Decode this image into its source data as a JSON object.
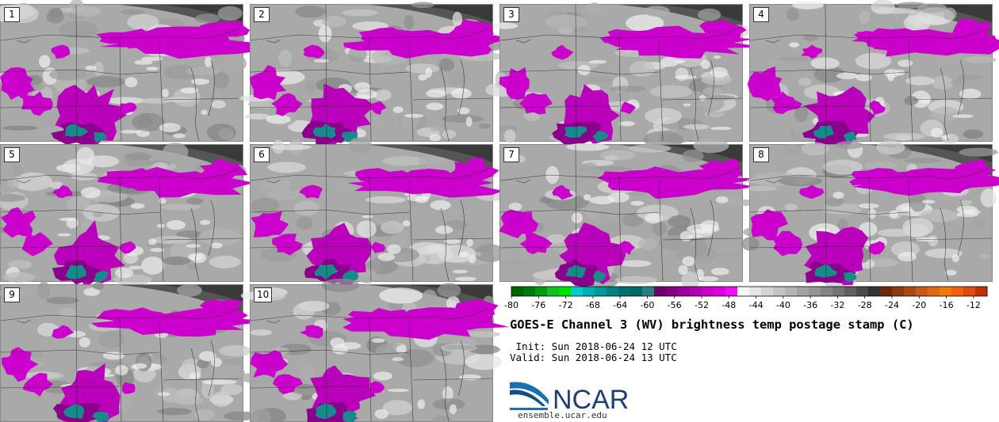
{
  "panels": [
    {
      "label": "1"
    },
    {
      "label": "2"
    },
    {
      "label": "3"
    },
    {
      "label": "4"
    },
    {
      "label": "5"
    },
    {
      "label": "6"
    },
    {
      "label": "7"
    },
    {
      "label": "8"
    },
    {
      "label": "9"
    },
    {
      "label": "10"
    }
  ],
  "colorbar": {
    "ticks": [
      "-80",
      "-76",
      "-72",
      "-68",
      "-64",
      "-60",
      "-56",
      "-52",
      "-48",
      "-44",
      "-40",
      "-36",
      "-32",
      "-28",
      "-24",
      "-20",
      "-16",
      "-12"
    ],
    "colors": [
      "#006400",
      "#007a10",
      "#009a15",
      "#10c020",
      "#00e000",
      "#00cccc",
      "#00b0b0",
      "#009999",
      "#008080",
      "#007070",
      "#006868",
      "#2a8080",
      "#6a006a",
      "#800080",
      "#990099",
      "#b000b0",
      "#c800c8",
      "#dd00dd",
      "#ee10ee",
      "#f8f8f8",
      "#e6e6e6",
      "#d4d4d4",
      "#c4c4c4",
      "#b4b4b4",
      "#a4a4a4",
      "#949494",
      "#848484",
      "#747474",
      "#606060",
      "#4a4a4a",
      "#333333",
      "#6b2a10",
      "#8a3a12",
      "#a84a14",
      "#c45a16",
      "#dd6a10",
      "#ef7a0a",
      "#f06010",
      "#e04a10",
      "#c03008"
    ]
  },
  "title": "GOES-E Channel 3 (WV) brightness temp postage stamp (C)",
  "init": " Init: Sun 2018-06-24 12 UTC",
  "valid": "Valid: Sun 2018-06-24 13 UTC",
  "logo": {
    "name": "NCAR",
    "url": "ensemble.ucar.edu"
  }
}
